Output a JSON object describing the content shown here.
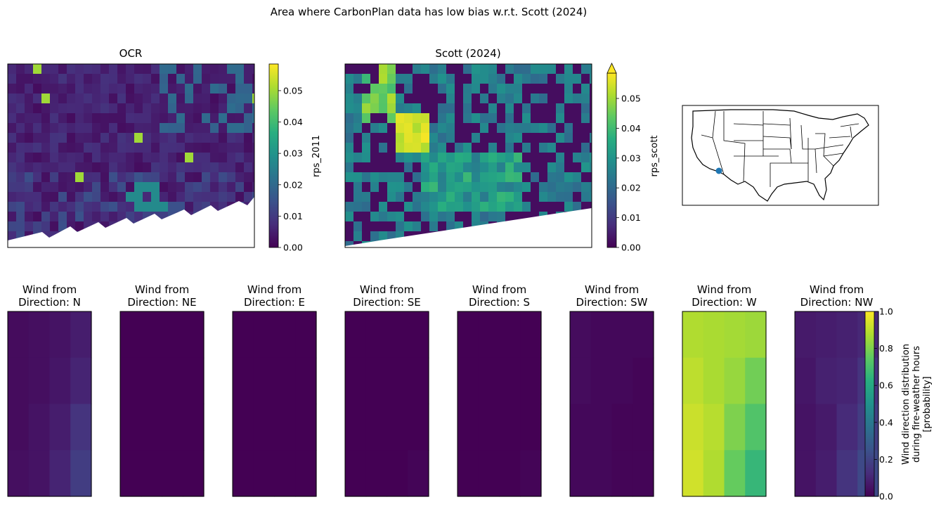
{
  "figure": {
    "suptitle": "Area where CarbonPlan data has low bias w.r.t. Scott (2024)"
  },
  "chart_data": [
    {
      "type": "heatmap",
      "title": "OCR",
      "colorbar": {
        "label": "rps_2011",
        "ticks": [
          "0.00",
          "0.01",
          "0.02",
          "0.03",
          "0.04",
          "0.05"
        ],
        "range": [
          0.0,
          0.0585
        ],
        "extend": "none",
        "colormap": "viridis"
      },
      "description_values": {
        "dominant_value": 0.005,
        "max_value": 0.05
      }
    },
    {
      "type": "heatmap",
      "title": "Scott (2024)",
      "colorbar": {
        "label": "rps_scott",
        "ticks": [
          "0.00",
          "0.01",
          "0.02",
          "0.03",
          "0.04",
          "0.05"
        ],
        "range": [
          0.0,
          0.0585
        ],
        "extend": "max",
        "colormap": "viridis"
      },
      "description_values": {
        "dominant_value": 0.02,
        "max_value": 0.06
      }
    },
    {
      "type": "map",
      "title": "",
      "marker": {
        "lon": -116.2,
        "lat": 33.0,
        "color": "#1f77b4"
      }
    },
    {
      "type": "heatmap",
      "group": "wind_direction",
      "colorbar": {
        "label_lines": [
          "Wind direction distribution",
          "during fire-weather hours",
          "[probability]"
        ],
        "ticks": [
          "0.0",
          "0.2",
          "0.4",
          "0.6",
          "0.8",
          "1.0"
        ],
        "range": [
          0.0,
          1.0
        ],
        "colormap": "viridis"
      },
      "panels": [
        {
          "title_line1": "Wind from",
          "title_line2": "Direction: N",
          "values": [
            [
              0.03,
              0.04,
              0.05,
              0.08
            ],
            [
              0.03,
              0.04,
              0.06,
              0.1
            ],
            [
              0.03,
              0.05,
              0.08,
              0.15
            ],
            [
              0.04,
              0.05,
              0.1,
              0.18
            ]
          ]
        },
        {
          "title_line1": "Wind from",
          "title_line2": "Direction: NE",
          "values": [
            [
              0.0,
              0.0,
              0.0,
              0.0
            ],
            [
              0.0,
              0.0,
              0.0,
              0.0
            ],
            [
              0.0,
              0.0,
              0.0,
              0.0
            ],
            [
              0.0,
              0.0,
              0.0,
              0.0
            ]
          ]
        },
        {
          "title_line1": "Wind from",
          "title_line2": "Direction: E",
          "values": [
            [
              0.0,
              0.0,
              0.0,
              0.0
            ],
            [
              0.0,
              0.0,
              0.0,
              0.0
            ],
            [
              0.0,
              0.0,
              0.0,
              0.0
            ],
            [
              0.0,
              0.0,
              0.0,
              0.0
            ]
          ]
        },
        {
          "title_line1": "Wind from",
          "title_line2": "Direction: SE",
          "values": [
            [
              0.0,
              0.0,
              0.0,
              0.0
            ],
            [
              0.0,
              0.0,
              0.0,
              0.0
            ],
            [
              0.0,
              0.0,
              0.0,
              0.0
            ],
            [
              0.0,
              0.0,
              0.0,
              0.01
            ]
          ]
        },
        {
          "title_line1": "Wind from",
          "title_line2": "Direction: S",
          "values": [
            [
              0.0,
              0.0,
              0.0,
              0.0
            ],
            [
              0.0,
              0.0,
              0.0,
              0.0
            ],
            [
              0.0,
              0.0,
              0.0,
              0.0
            ],
            [
              0.0,
              0.0,
              0.0,
              0.01
            ]
          ]
        },
        {
          "title_line1": "Wind from",
          "title_line2": "Direction: SW",
          "values": [
            [
              0.03,
              0.02,
              0.02,
              0.02
            ],
            [
              0.03,
              0.02,
              0.02,
              0.01
            ],
            [
              0.02,
              0.02,
              0.01,
              0.01
            ],
            [
              0.02,
              0.02,
              0.01,
              0.01
            ]
          ]
        },
        {
          "title_line1": "Wind from",
          "title_line2": "Direction: W",
          "values": [
            [
              0.88,
              0.87,
              0.86,
              0.85
            ],
            [
              0.9,
              0.87,
              0.84,
              0.78
            ],
            [
              0.92,
              0.89,
              0.8,
              0.72
            ],
            [
              0.93,
              0.88,
              0.76,
              0.66
            ]
          ]
        },
        {
          "title_line1": "Wind from",
          "title_line2": "Direction: NW",
          "values": [
            [
              0.07,
              0.08,
              0.09,
              0.11
            ],
            [
              0.06,
              0.09,
              0.1,
              0.15
            ],
            [
              0.05,
              0.07,
              0.12,
              0.18
            ],
            [
              0.05,
              0.08,
              0.15,
              0.22
            ]
          ]
        }
      ]
    }
  ]
}
